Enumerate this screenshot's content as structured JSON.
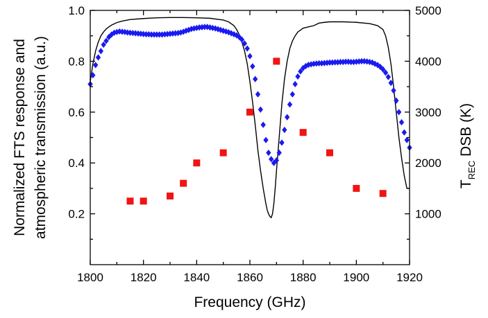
{
  "chart_data": {
    "type": "scatter",
    "xlabel": "Frequency (GHz)",
    "ylabel_left": [
      "Normalized FTS response and",
      "atmospheric transmission (a.u.)"
    ],
    "ylabel_right": {
      "main": "T",
      "sub": "REC",
      "rest": " DSB (K)"
    },
    "xlim": [
      1800,
      1920
    ],
    "ylim_left": [
      0.0,
      1.0
    ],
    "ylim_right": [
      0,
      5000
    ],
    "x_ticks": [
      1800,
      1820,
      1840,
      1860,
      1880,
      1900,
      1920
    ],
    "x_tick_labels": [
      "1800",
      "1820",
      "1840",
      "1860",
      "1880",
      "1900",
      "1920"
    ],
    "y_left_ticks": [
      0.2,
      0.4,
      0.6,
      0.8,
      1.0
    ],
    "y_left_tick_labels": [
      "0.2",
      "0.4",
      "0.6",
      "0.8",
      "1.0"
    ],
    "y_right_ticks": [
      1000,
      2000,
      3000,
      4000,
      5000
    ],
    "y_right_tick_labels": [
      "1000",
      "2000",
      "3000",
      "4000",
      "5000"
    ],
    "grid": false,
    "legend": "none",
    "colors": {
      "fts": "#1a1af0",
      "trec": "#f01414",
      "atm": "#000000"
    },
    "series": [
      {
        "style": "line",
        "axis": "left",
        "color": "#000000",
        "x": [
          1800,
          1801,
          1802,
          1803,
          1804,
          1805,
          1806,
          1807,
          1808,
          1810,
          1812,
          1815,
          1820,
          1825,
          1830,
          1835,
          1840,
          1845,
          1850,
          1852,
          1854,
          1855,
          1856,
          1857,
          1858,
          1859,
          1860,
          1861,
          1862,
          1863,
          1864,
          1865,
          1866,
          1866.5,
          1867,
          1867.5,
          1868,
          1868.5,
          1869,
          1869.5,
          1870,
          1871,
          1872,
          1873,
          1874,
          1875,
          1876,
          1877,
          1878,
          1880,
          1882,
          1884,
          1886,
          1888,
          1890,
          1895,
          1900,
          1905,
          1908,
          1910,
          1911,
          1912,
          1913,
          1914,
          1915,
          1916,
          1917,
          1918,
          1919,
          1920
        ],
        "y": [
          0.72,
          0.79,
          0.84,
          0.875,
          0.9,
          0.915,
          0.927,
          0.935,
          0.942,
          0.952,
          0.958,
          0.964,
          0.968,
          0.971,
          0.972,
          0.972,
          0.971,
          0.969,
          0.962,
          0.955,
          0.94,
          0.925,
          0.905,
          0.875,
          0.84,
          0.79,
          0.72,
          0.64,
          0.55,
          0.45,
          0.37,
          0.3,
          0.24,
          0.215,
          0.2,
          0.19,
          0.185,
          0.2,
          0.24,
          0.3,
          0.37,
          0.5,
          0.63,
          0.73,
          0.8,
          0.85,
          0.88,
          0.9,
          0.915,
          0.93,
          0.935,
          0.94,
          0.95,
          0.953,
          0.955,
          0.955,
          0.953,
          0.948,
          0.94,
          0.925,
          0.9,
          0.855,
          0.79,
          0.7,
          0.6,
          0.5,
          0.42,
          0.35,
          0.3,
          0.3
        ]
      },
      {
        "style": "markers",
        "marker": "diamond",
        "axis": "left",
        "color": "#1a1af0",
        "x": [
          1800,
          1801,
          1802,
          1803,
          1804,
          1805,
          1806,
          1807,
          1808,
          1809,
          1810,
          1811,
          1812,
          1813,
          1814,
          1815,
          1816,
          1817,
          1818,
          1819,
          1820,
          1821,
          1822,
          1823,
          1824,
          1825,
          1826,
          1827,
          1828,
          1829,
          1830,
          1831,
          1832,
          1833,
          1834,
          1835,
          1836,
          1837,
          1838,
          1839,
          1840,
          1841,
          1842,
          1843,
          1844,
          1845,
          1846,
          1847,
          1848,
          1849,
          1850,
          1851,
          1852,
          1853,
          1854,
          1855,
          1856,
          1857,
          1858,
          1859,
          1860,
          1861,
          1862,
          1863,
          1864,
          1865,
          1866,
          1867,
          1868,
          1869,
          1870,
          1871,
          1872,
          1873,
          1874,
          1875,
          1876,
          1877,
          1878,
          1879,
          1880,
          1881,
          1882,
          1883,
          1884,
          1885,
          1886,
          1887,
          1888,
          1889,
          1890,
          1891,
          1892,
          1893,
          1894,
          1895,
          1896,
          1897,
          1898,
          1899,
          1900,
          1901,
          1902,
          1903,
          1904,
          1905,
          1906,
          1907,
          1908,
          1909,
          1910,
          1911,
          1912,
          1913,
          1914,
          1915,
          1916,
          1917,
          1918,
          1919,
          1920
        ],
        "y": [
          0.71,
          0.745,
          0.785,
          0.815,
          0.84,
          0.865,
          0.88,
          0.895,
          0.905,
          0.912,
          0.915,
          0.917,
          0.916,
          0.915,
          0.913,
          0.912,
          0.911,
          0.91,
          0.909,
          0.908,
          0.907,
          0.906,
          0.906,
          0.905,
          0.905,
          0.905,
          0.905,
          0.905,
          0.906,
          0.907,
          0.908,
          0.909,
          0.91,
          0.911,
          0.913,
          0.916,
          0.92,
          0.923,
          0.927,
          0.929,
          0.931,
          0.933,
          0.934,
          0.935,
          0.935,
          0.933,
          0.931,
          0.929,
          0.926,
          0.923,
          0.92,
          0.917,
          0.914,
          0.91,
          0.906,
          0.902,
          0.895,
          0.885,
          0.87,
          0.85,
          0.82,
          0.78,
          0.73,
          0.67,
          0.61,
          0.55,
          0.49,
          0.44,
          0.415,
          0.4,
          0.41,
          0.44,
          0.48,
          0.53,
          0.58,
          0.63,
          0.67,
          0.71,
          0.74,
          0.76,
          0.773,
          0.781,
          0.786,
          0.788,
          0.79,
          0.791,
          0.792,
          0.792,
          0.793,
          0.794,
          0.795,
          0.795,
          0.796,
          0.796,
          0.797,
          0.797,
          0.798,
          0.798,
          0.797,
          0.797,
          0.798,
          0.799,
          0.8,
          0.8,
          0.799,
          0.797,
          0.795,
          0.79,
          0.785,
          0.778,
          0.768,
          0.755,
          0.738,
          0.715,
          0.685,
          0.645,
          0.6,
          0.56,
          0.52,
          0.49,
          0.46
        ]
      },
      {
        "style": "markers",
        "marker": "square",
        "axis": "right",
        "color": "#f01414",
        "x": [
          1815,
          1820,
          1830,
          1835,
          1840,
          1850,
          1860,
          1870,
          1880,
          1890,
          1900,
          1910
        ],
        "y": [
          1250,
          1250,
          1350,
          1600,
          2000,
          2200,
          3000,
          4000,
          2600,
          2200,
          1500,
          1400
        ]
      }
    ]
  }
}
